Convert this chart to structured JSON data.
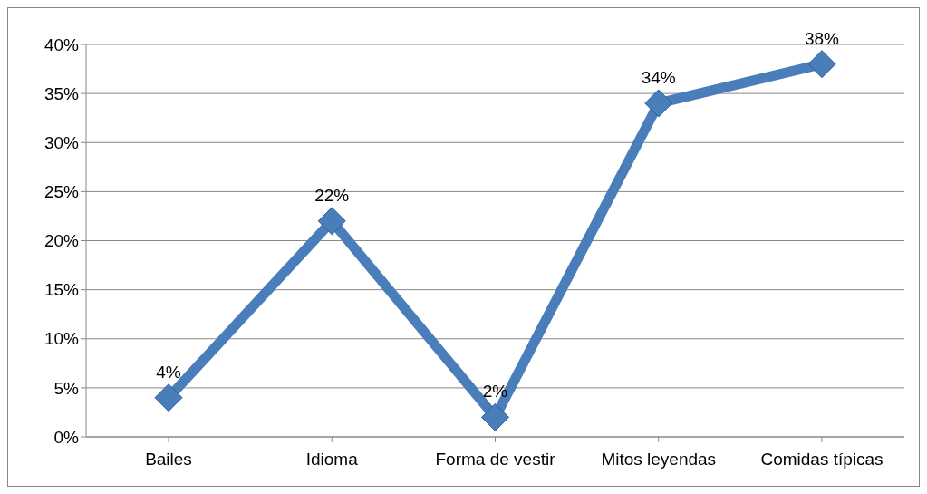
{
  "chart_data": {
    "type": "line",
    "categories": [
      "Bailes",
      "Idioma",
      "Forma de vestir",
      "Mitos leyendas",
      "Comidas típicas"
    ],
    "values": [
      4,
      22,
      2,
      34,
      38
    ],
    "value_labels": [
      "4%",
      "22%",
      "2%",
      "34%",
      "38%"
    ],
    "color": "#4a7ebb",
    "ylim": [
      0,
      40
    ],
    "yticks": [
      {
        "value": 0,
        "label": "0%"
      },
      {
        "value": 5,
        "label": "5%"
      },
      {
        "value": 10,
        "label": "10%"
      },
      {
        "value": 15,
        "label": "15%"
      },
      {
        "value": 20,
        "label": "20%"
      },
      {
        "value": 25,
        "label": "25%"
      },
      {
        "value": 30,
        "label": "30%"
      },
      {
        "value": 35,
        "label": "35%"
      },
      {
        "value": 40,
        "label": "40%"
      }
    ],
    "grid": "y",
    "marker": "diamond"
  }
}
